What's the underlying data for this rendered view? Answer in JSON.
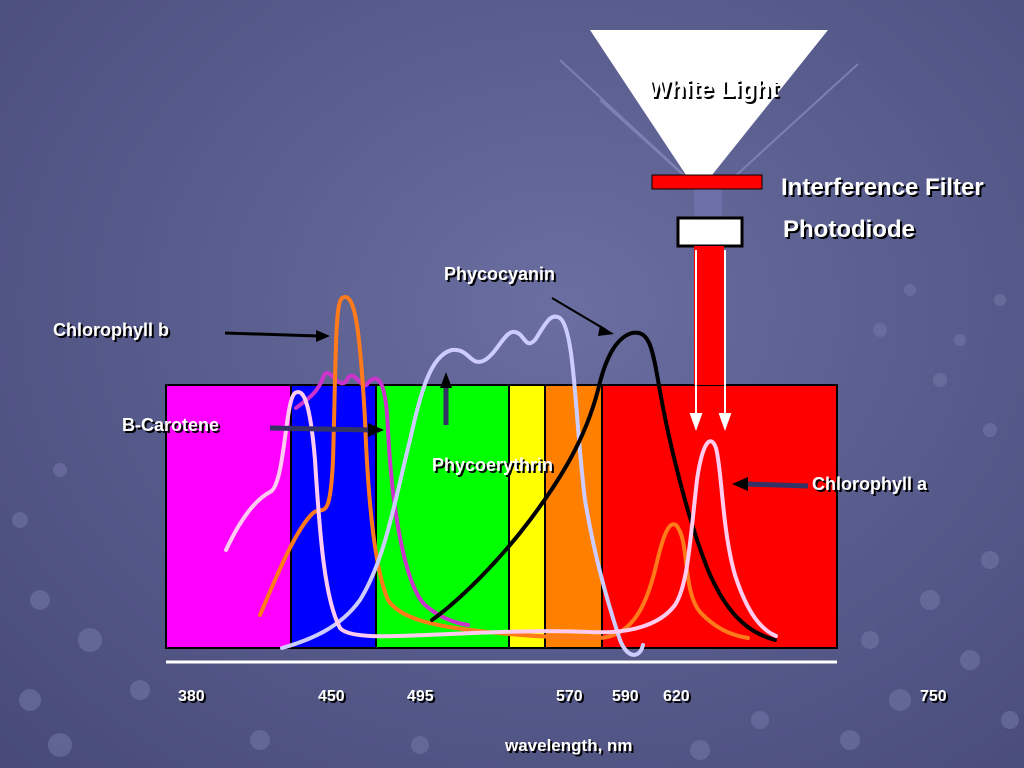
{
  "labels": {
    "white_light": "White Light",
    "interference_filter": "Interference Filter",
    "photodiode": "Photodiode",
    "phycocyanin": "Phycocyanin",
    "chlorophyll_b": "Chlorophyll b",
    "b_carotene": "B-Carotene",
    "phycoerythrin": "Phycoerythrin",
    "chlorophyll_a": "Chlorophyll a",
    "axis_label": "wavelength, nm"
  },
  "ticks": [
    "380",
    "450",
    "495",
    "570",
    "590",
    "620",
    "750"
  ],
  "spectrum_bands": [
    {
      "name": "violet",
      "color": "#ff00ff"
    },
    {
      "name": "blue",
      "color": "#0000ff"
    },
    {
      "name": "green",
      "color": "#00ff00"
    },
    {
      "name": "yellow",
      "color": "#ffff00"
    },
    {
      "name": "orange",
      "color": "#ff8000"
    },
    {
      "name": "red",
      "color": "#ff0000"
    }
  ],
  "curve_colors": {
    "chlorophyll_b": "#ff7a1a",
    "b_carotene": "#cc33cc",
    "phycoerythrin": "#ccccff",
    "phycocyanin": "#000000",
    "chlorophyll_a": "#ffccf0",
    "filter": "#ff0000",
    "photodiode": "#ffffff",
    "beam": "#ff0000"
  }
}
